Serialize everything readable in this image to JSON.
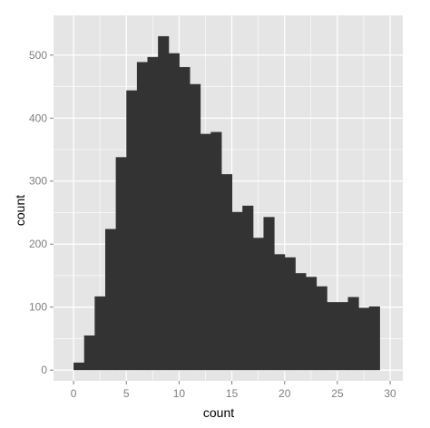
{
  "chart_data": {
    "type": "bar",
    "xlabel": "count",
    "ylabel": "count",
    "xlim": [
      -1.9,
      31.2
    ],
    "ylim": [
      -17,
      563
    ],
    "x_ticks": [
      0,
      5,
      10,
      15,
      20,
      25,
      30
    ],
    "y_ticks": [
      0,
      100,
      200,
      300,
      400,
      500
    ],
    "bin_width": 1,
    "bins_start": [
      0,
      1,
      2,
      3,
      4,
      5,
      6,
      7,
      8,
      9,
      10,
      11,
      12,
      13,
      14,
      15,
      16,
      17,
      18,
      19,
      20,
      21,
      22,
      23,
      24,
      25,
      26,
      27,
      28
    ],
    "values": [
      12,
      55,
      117,
      224,
      338,
      444,
      489,
      497,
      530,
      503,
      481,
      454,
      375,
      378,
      311,
      251,
      261,
      210,
      243,
      184,
      179,
      154,
      148,
      133,
      108,
      108,
      116,
      99,
      101
    ],
    "grid": true,
    "colors": {
      "panel_background": "#e5e5e5",
      "gridline": "#ffffff",
      "bar_fill": "#333333",
      "tick_label": "#7f7f7f"
    }
  }
}
